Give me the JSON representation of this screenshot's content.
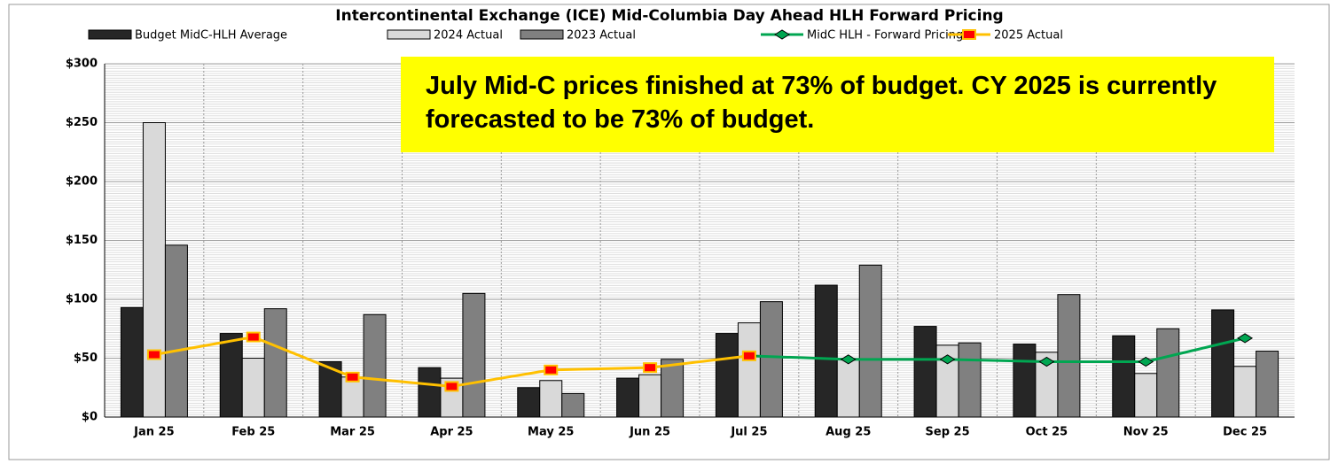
{
  "chart_data": {
    "type": "bar",
    "title": "Intercontinental Exchange (ICE) Mid-Columbia Day Ahead HLH Forward Pricing",
    "annotation": "July Mid-C prices finished at 73% of budget. CY 2025 is currently forecasted to be 73% of budget.",
    "categories": [
      "Jan 25",
      "Feb 25",
      "Mar 25",
      "Apr 25",
      "May 25",
      "Jun 25",
      "Jul 25",
      "Aug 25",
      "Sep 25",
      "Oct 25",
      "Nov 25",
      "Dec 25"
    ],
    "series": [
      {
        "name": "Budget MidC-HLH Average",
        "type": "bar",
        "color": "#262626",
        "values": [
          93,
          71,
          47,
          42,
          25,
          33,
          71,
          112,
          77,
          62,
          69,
          91
        ]
      },
      {
        "name": "2024 Actual",
        "type": "bar",
        "color": "#d9d9d9",
        "values": [
          250,
          50,
          34,
          33,
          31,
          36,
          80,
          49,
          61,
          55,
          37,
          43
        ]
      },
      {
        "name": "2023 Actual",
        "type": "bar",
        "color": "#808080",
        "values": [
          146,
          92,
          87,
          105,
          20,
          49,
          98,
          129,
          63,
          104,
          75,
          56
        ]
      },
      {
        "name": "MidC HLH - Forward Pricing",
        "type": "line",
        "color": "#00a651",
        "marker_color": "#00a651",
        "values": [
          null,
          null,
          null,
          null,
          null,
          null,
          52,
          49,
          49,
          47,
          47,
          67
        ]
      },
      {
        "name": "2025 Actual",
        "type": "line",
        "color": "#ffc000",
        "marker_color": "#ff0000",
        "values": [
          53,
          68,
          34,
          26,
          40,
          42,
          52,
          null,
          null,
          null,
          null,
          null
        ]
      }
    ],
    "ylim": [
      0,
      300
    ],
    "yticks": [
      {
        "value": 0,
        "label": "$0"
      },
      {
        "value": 50,
        "label": "$50"
      },
      {
        "value": 100,
        "label": "$100"
      },
      {
        "value": 150,
        "label": "$150"
      },
      {
        "value": 200,
        "label": "$200"
      },
      {
        "value": 250,
        "label": "$250"
      },
      {
        "value": 300,
        "label": "$300"
      }
    ],
    "grid": true,
    "legend": "top"
  }
}
